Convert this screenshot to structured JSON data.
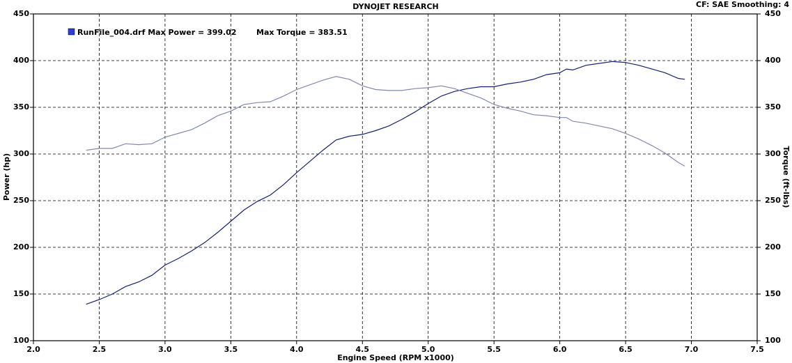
{
  "chart_data": {
    "type": "line",
    "title": "DYNOJET RESEARCH",
    "subtitle": "CF: SAE  Smoothing: 4",
    "x_label": "Engine Speed (RPM x1000)",
    "y_label": "Power (hp)",
    "y2_label": "Torque (ft-lbs)",
    "legend": {
      "text": "RunFile_004.drf Max Power = 399.02",
      "text2": "Max Torque = 383.51",
      "color": "#2b3fd0"
    },
    "x": [
      2.4,
      2.5,
      2.6,
      2.7,
      2.8,
      2.9,
      3.0,
      3.1,
      3.2,
      3.3,
      3.4,
      3.5,
      3.6,
      3.7,
      3.8,
      3.9,
      4.0,
      4.1,
      4.2,
      4.3,
      4.4,
      4.5,
      4.6,
      4.7,
      4.8,
      4.9,
      5.0,
      5.1,
      5.2,
      5.3,
      5.4,
      5.5,
      5.6,
      5.7,
      5.8,
      5.9,
      6.0,
      6.05,
      6.1,
      6.2,
      6.3,
      6.4,
      6.5,
      6.6,
      6.7,
      6.8,
      6.9,
      6.95
    ],
    "series": [
      {
        "color": "#14206e",
        "values": [
          139,
          144,
          150,
          158,
          163,
          170,
          181,
          188,
          196,
          205,
          216,
          228,
          240,
          249,
          256,
          267,
          280,
          292,
          304,
          315,
          319,
          321,
          325,
          330,
          337,
          345,
          354,
          362,
          367,
          370,
          372,
          372,
          375,
          377,
          380,
          385,
          387,
          391,
          390,
          395,
          397,
          399,
          398,
          395,
          391,
          387,
          381,
          380
        ]
      },
      {
        "color": "#8088b0",
        "axis": "y2",
        "values": [
          304,
          306,
          306,
          311,
          310,
          311,
          318,
          322,
          326,
          333,
          341,
          346,
          353,
          355,
          356,
          362,
          369,
          374,
          379,
          383,
          380,
          373,
          369,
          368,
          368,
          370,
          371,
          373,
          370,
          365,
          360,
          353,
          349,
          346,
          342,
          341,
          339,
          339,
          335,
          333,
          330,
          327,
          322,
          316,
          309,
          301,
          291,
          287
        ]
      }
    ],
    "xlim": [
      2.0,
      7.5
    ],
    "xticks": [
      {
        "value": 2.0,
        "label": "2.0"
      },
      2.5,
      {
        "value": 3.0,
        "label": "3.0"
      },
      3.5,
      {
        "value": 4.0,
        "label": "4.0"
      },
      4.5,
      {
        "value": 5.0,
        "label": "5.0"
      },
      5.5,
      {
        "value": 6.0,
        "label": "6.0"
      },
      6.5,
      {
        "value": 7.0,
        "label": "7.0"
      },
      7.5
    ],
    "ylim": [
      100,
      450
    ],
    "yticks": [
      100,
      150,
      200,
      250,
      300,
      350,
      400,
      450
    ],
    "y2lim": [
      100,
      450
    ],
    "y2ticks": [
      100,
      150,
      200,
      250,
      300,
      350,
      400,
      450
    ],
    "grid": true
  }
}
